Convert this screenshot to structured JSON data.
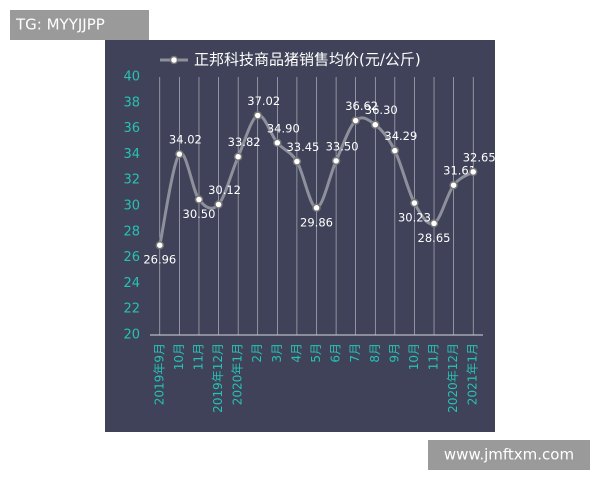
{
  "chart_data": {
    "type": "line",
    "categories": [
      "2019年9月",
      "10月",
      "11月",
      "2019年12月",
      "2020年1月",
      "2月",
      "3月",
      "4月",
      "5月",
      "6月",
      "7月",
      "8月",
      "9月",
      "10月",
      "11月",
      "2020年12月",
      "2021年1月"
    ],
    "series": [
      {
        "name": "正邦科技商品猪销售均价(元/公斤)",
        "color": "#8e909c",
        "values": [
          26.96,
          34.02,
          30.5,
          30.12,
          33.82,
          37.02,
          34.9,
          33.45,
          29.86,
          33.5,
          36.62,
          36.3,
          34.29,
          30.23,
          28.65,
          31.61,
          32.65
        ],
        "value_labels": [
          "26.96",
          "34.02",
          "30.50",
          "30.12",
          "33.82",
          "37.02",
          "34.90",
          "33.45",
          "29.86",
          "33.50",
          "36.62",
          "36.30",
          "34.29",
          "30.23",
          "28.65",
          "31.61",
          "32.65"
        ]
      }
    ],
    "ylim": [
      20,
      40
    ],
    "yticks": [
      20,
      22,
      24,
      26,
      28,
      30,
      32,
      34,
      36,
      38,
      40
    ],
    "grid": true,
    "axis_color": "#27c2b4",
    "background": "#3f4258"
  },
  "watermarks": {
    "top_left": "TG: MYYJJPP",
    "bottom_right": "www.jmftxm.com"
  }
}
